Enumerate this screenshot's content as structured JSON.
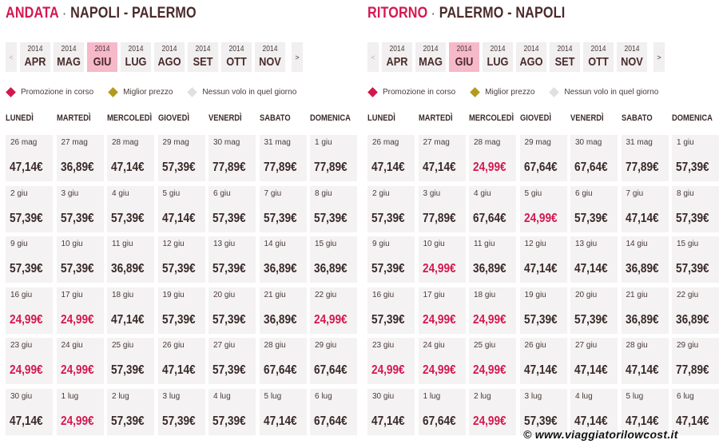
{
  "colors": {
    "promo": "#d4174f",
    "best": "#b49a1e",
    "none": "#e0e0e0"
  },
  "legend": {
    "promo": "Promozione in corso",
    "best": "Miglior prezzo",
    "none": "Nessun volo in quel giorno"
  },
  "days": [
    "LUNEDÌ",
    "MARTEDÌ",
    "MERCOLEDÌ",
    "GIOVEDÌ",
    "VENERDÌ",
    "SABATO",
    "DOMENICA"
  ],
  "months": [
    {
      "year": "2014",
      "name": "APR"
    },
    {
      "year": "2014",
      "name": "MAG"
    },
    {
      "year": "2014",
      "name": "GIU"
    },
    {
      "year": "2014",
      "name": "LUG"
    },
    {
      "year": "2014",
      "name": "AGO"
    },
    {
      "year": "2014",
      "name": "SET"
    },
    {
      "year": "2014",
      "name": "OTT"
    },
    {
      "year": "2014",
      "name": "NOV"
    }
  ],
  "nav": {
    "prev": "<",
    "next": ">"
  },
  "selected_month": "GIU",
  "dates": [
    "26 mag",
    "27 mag",
    "28 mag",
    "29 mag",
    "30 mag",
    "31 mag",
    "1 giu",
    "2 giu",
    "3 giu",
    "4 giu",
    "5 giu",
    "6 giu",
    "7 giu",
    "8 giu",
    "9 giu",
    "10 giu",
    "11 giu",
    "12 giu",
    "13 giu",
    "14 giu",
    "15 giu",
    "16 giu",
    "17 giu",
    "18 giu",
    "19 giu",
    "20 giu",
    "21 giu",
    "22 giu",
    "23 giu",
    "24 giu",
    "25 giu",
    "26 giu",
    "27 giu",
    "28 giu",
    "29 giu",
    "30 giu",
    "1 lug",
    "2 lug",
    "3 lug",
    "4 lug",
    "5 lug",
    "6 lug"
  ],
  "outbound": {
    "direction": "ANDATA",
    "separator": "·",
    "route": "NAPOLI - PALERMO",
    "prices": [
      [
        "47,14€",
        0
      ],
      [
        "36,89€",
        0
      ],
      [
        "47,14€",
        0
      ],
      [
        "57,39€",
        0
      ],
      [
        "77,89€",
        0
      ],
      [
        "77,89€",
        0
      ],
      [
        "77,89€",
        0
      ],
      [
        "57,39€",
        0
      ],
      [
        "57,39€",
        0
      ],
      [
        "57,39€",
        0
      ],
      [
        "47,14€",
        0
      ],
      [
        "57,39€",
        0
      ],
      [
        "57,39€",
        0
      ],
      [
        "57,39€",
        0
      ],
      [
        "57,39€",
        0
      ],
      [
        "57,39€",
        0
      ],
      [
        "36,89€",
        0
      ],
      [
        "57,39€",
        0
      ],
      [
        "57,39€",
        0
      ],
      [
        "36,89€",
        0
      ],
      [
        "36,89€",
        0
      ],
      [
        "24,99€",
        1
      ],
      [
        "24,99€",
        1
      ],
      [
        "47,14€",
        0
      ],
      [
        "57,39€",
        0
      ],
      [
        "57,39€",
        0
      ],
      [
        "36,89€",
        0
      ],
      [
        "24,99€",
        1
      ],
      [
        "24,99€",
        1
      ],
      [
        "24,99€",
        1
      ],
      [
        "57,39€",
        0
      ],
      [
        "47,14€",
        0
      ],
      [
        "57,39€",
        0
      ],
      [
        "67,64€",
        0
      ],
      [
        "67,64€",
        0
      ],
      [
        "47,14€",
        0
      ],
      [
        "24,99€",
        1
      ],
      [
        "57,39€",
        0
      ],
      [
        "57,39€",
        0
      ],
      [
        "57,39€",
        0
      ],
      [
        "47,14€",
        0
      ],
      [
        "67,64€",
        0
      ]
    ]
  },
  "return": {
    "direction": "RITORNO",
    "separator": "·",
    "route": "PALERMO - NAPOLI",
    "prices": [
      [
        "47,14€",
        0
      ],
      [
        "47,14€",
        0
      ],
      [
        "24,99€",
        1
      ],
      [
        "67,64€",
        0
      ],
      [
        "67,64€",
        0
      ],
      [
        "77,89€",
        0
      ],
      [
        "57,39€",
        0
      ],
      [
        "57,39€",
        0
      ],
      [
        "77,89€",
        0
      ],
      [
        "67,64€",
        0
      ],
      [
        "24,99€",
        1
      ],
      [
        "57,39€",
        0
      ],
      [
        "47,14€",
        0
      ],
      [
        "57,39€",
        0
      ],
      [
        "57,39€",
        0
      ],
      [
        "24,99€",
        1
      ],
      [
        "36,89€",
        0
      ],
      [
        "47,14€",
        0
      ],
      [
        "47,14€",
        0
      ],
      [
        "36,89€",
        0
      ],
      [
        "57,39€",
        0
      ],
      [
        "57,39€",
        0
      ],
      [
        "24,99€",
        1
      ],
      [
        "24,99€",
        1
      ],
      [
        "57,39€",
        0
      ],
      [
        "57,39€",
        0
      ],
      [
        "36,89€",
        0
      ],
      [
        "36,89€",
        0
      ],
      [
        "24,99€",
        1
      ],
      [
        "24,99€",
        1
      ],
      [
        "24,99€",
        1
      ],
      [
        "47,14€",
        0
      ],
      [
        "47,14€",
        0
      ],
      [
        "47,14€",
        0
      ],
      [
        "77,89€",
        0
      ],
      [
        "47,14€",
        0
      ],
      [
        "67,64€",
        0
      ],
      [
        "24,99€",
        1
      ],
      [
        "57,39€",
        0
      ],
      [
        "47,14€",
        0
      ],
      [
        "47,14€",
        0
      ],
      [
        "47,14€",
        0
      ]
    ]
  },
  "watermark": "© www.viaggiatorilowcost.it"
}
